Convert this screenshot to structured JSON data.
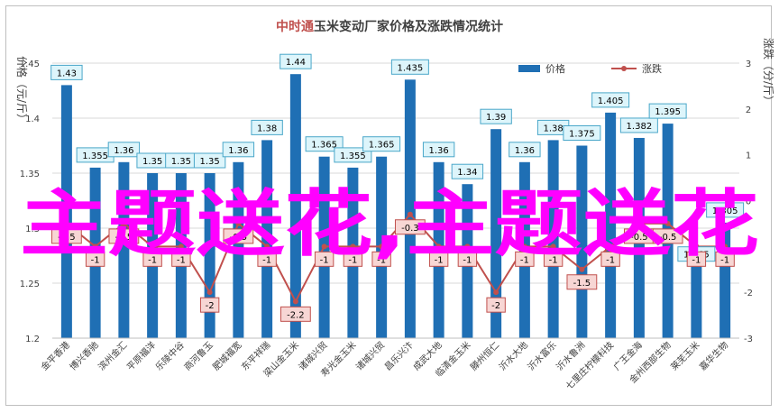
{
  "chart_data": {
    "type": "bar",
    "title": "中时通玉米变动厂家价格及涨跌情况统计",
    "title_brand": "中时通",
    "title_rest": "玉米变动厂家价格及涨跌情况统计",
    "ylabel_left": "价格（元/斤）",
    "ylabel_right": "涨跌（分/斤）",
    "ylim_left": [
      1.2,
      1.45
    ],
    "ylim_right": [
      -3,
      3
    ],
    "yticks_left": [
      "1.2",
      "1.25",
      "1.3",
      "1.35",
      "1.4",
      "1.45"
    ],
    "yticks_right": [
      "-3",
      "-2",
      "-1",
      "0",
      "1",
      "2",
      "3"
    ],
    "legend_position": "top-right",
    "legend": {
      "price": "价格",
      "change": "涨跌"
    },
    "colors": {
      "bar": "#1f6fb4",
      "line": "#c0504d",
      "price_label_bg": "#ddf5fb",
      "price_label_border": "#4aa7c9",
      "change_label_bg": "#f7d6d4",
      "change_label_border": "#c0504d",
      "brand": "#c0504d"
    },
    "categories": [
      "金平香港",
      "博兴香驰",
      "滨州金汇",
      "平原福洋",
      "乐陵中谷",
      "商河鲁玉",
      "肥城福宽",
      "东平祥瑞",
      "梁山金玉米",
      "诸城兴贸",
      "寿光金玉米",
      "诸城兴贸",
      "昌乐兴汴",
      "成武大地",
      "临清金玉米",
      "滕州恒仁",
      "沂水大地",
      "沂水富乐",
      "沂水鲁洲",
      "七里庄柠檬科技",
      "广王金海",
      "金州西部生物",
      "莱芜玉米",
      "嘉华生物"
    ],
    "series": [
      {
        "name": "价格",
        "axis": "left",
        "values": [
          1.43,
          1.355,
          1.36,
          1.35,
          1.35,
          1.35,
          1.36,
          1.38,
          1.44,
          1.365,
          1.355,
          1.365,
          1.435,
          1.36,
          1.34,
          1.39,
          1.36,
          1.38,
          1.375,
          1.405,
          1.382,
          1.395,
          1.265,
          1.305
        ],
        "labels": [
          "1.43",
          "1.355",
          "1.36",
          "1.35",
          "1.35",
          "1.35",
          "1.36",
          "1.38",
          "1.44",
          "1.365",
          "1.355",
          "1.365",
          "1.435",
          "1.36",
          "1.34",
          "1.39",
          "1.36",
          "1.38",
          "1.375",
          "1.405",
          "1.382",
          "1.395",
          "1.265",
          "1.305"
        ]
      },
      {
        "name": "涨跌",
        "axis": "right",
        "values": [
          -0.5,
          -1,
          -0.5,
          -1,
          -1,
          -2,
          -0.5,
          -1,
          -2.2,
          -1,
          -1,
          -1,
          -0.3,
          -1,
          -1,
          -2,
          -1,
          -1,
          -1.5,
          -1,
          -0.5,
          -0.5,
          -1,
          -1
        ],
        "labels": [
          "-0.5",
          "-1",
          "-0.5",
          "-1",
          "-1",
          "-2",
          "-0.5",
          "-1",
          "-2.2",
          "-1",
          "-1",
          "-1",
          "-0.3",
          "-1",
          "-1",
          "-2",
          "-1",
          "-1",
          "-1.5",
          "-1",
          "-0.5",
          "-0.5",
          "-1",
          "-1"
        ]
      }
    ]
  },
  "overlay": {
    "text": "主题送花,主题送花",
    "color": "#ff00ff"
  }
}
